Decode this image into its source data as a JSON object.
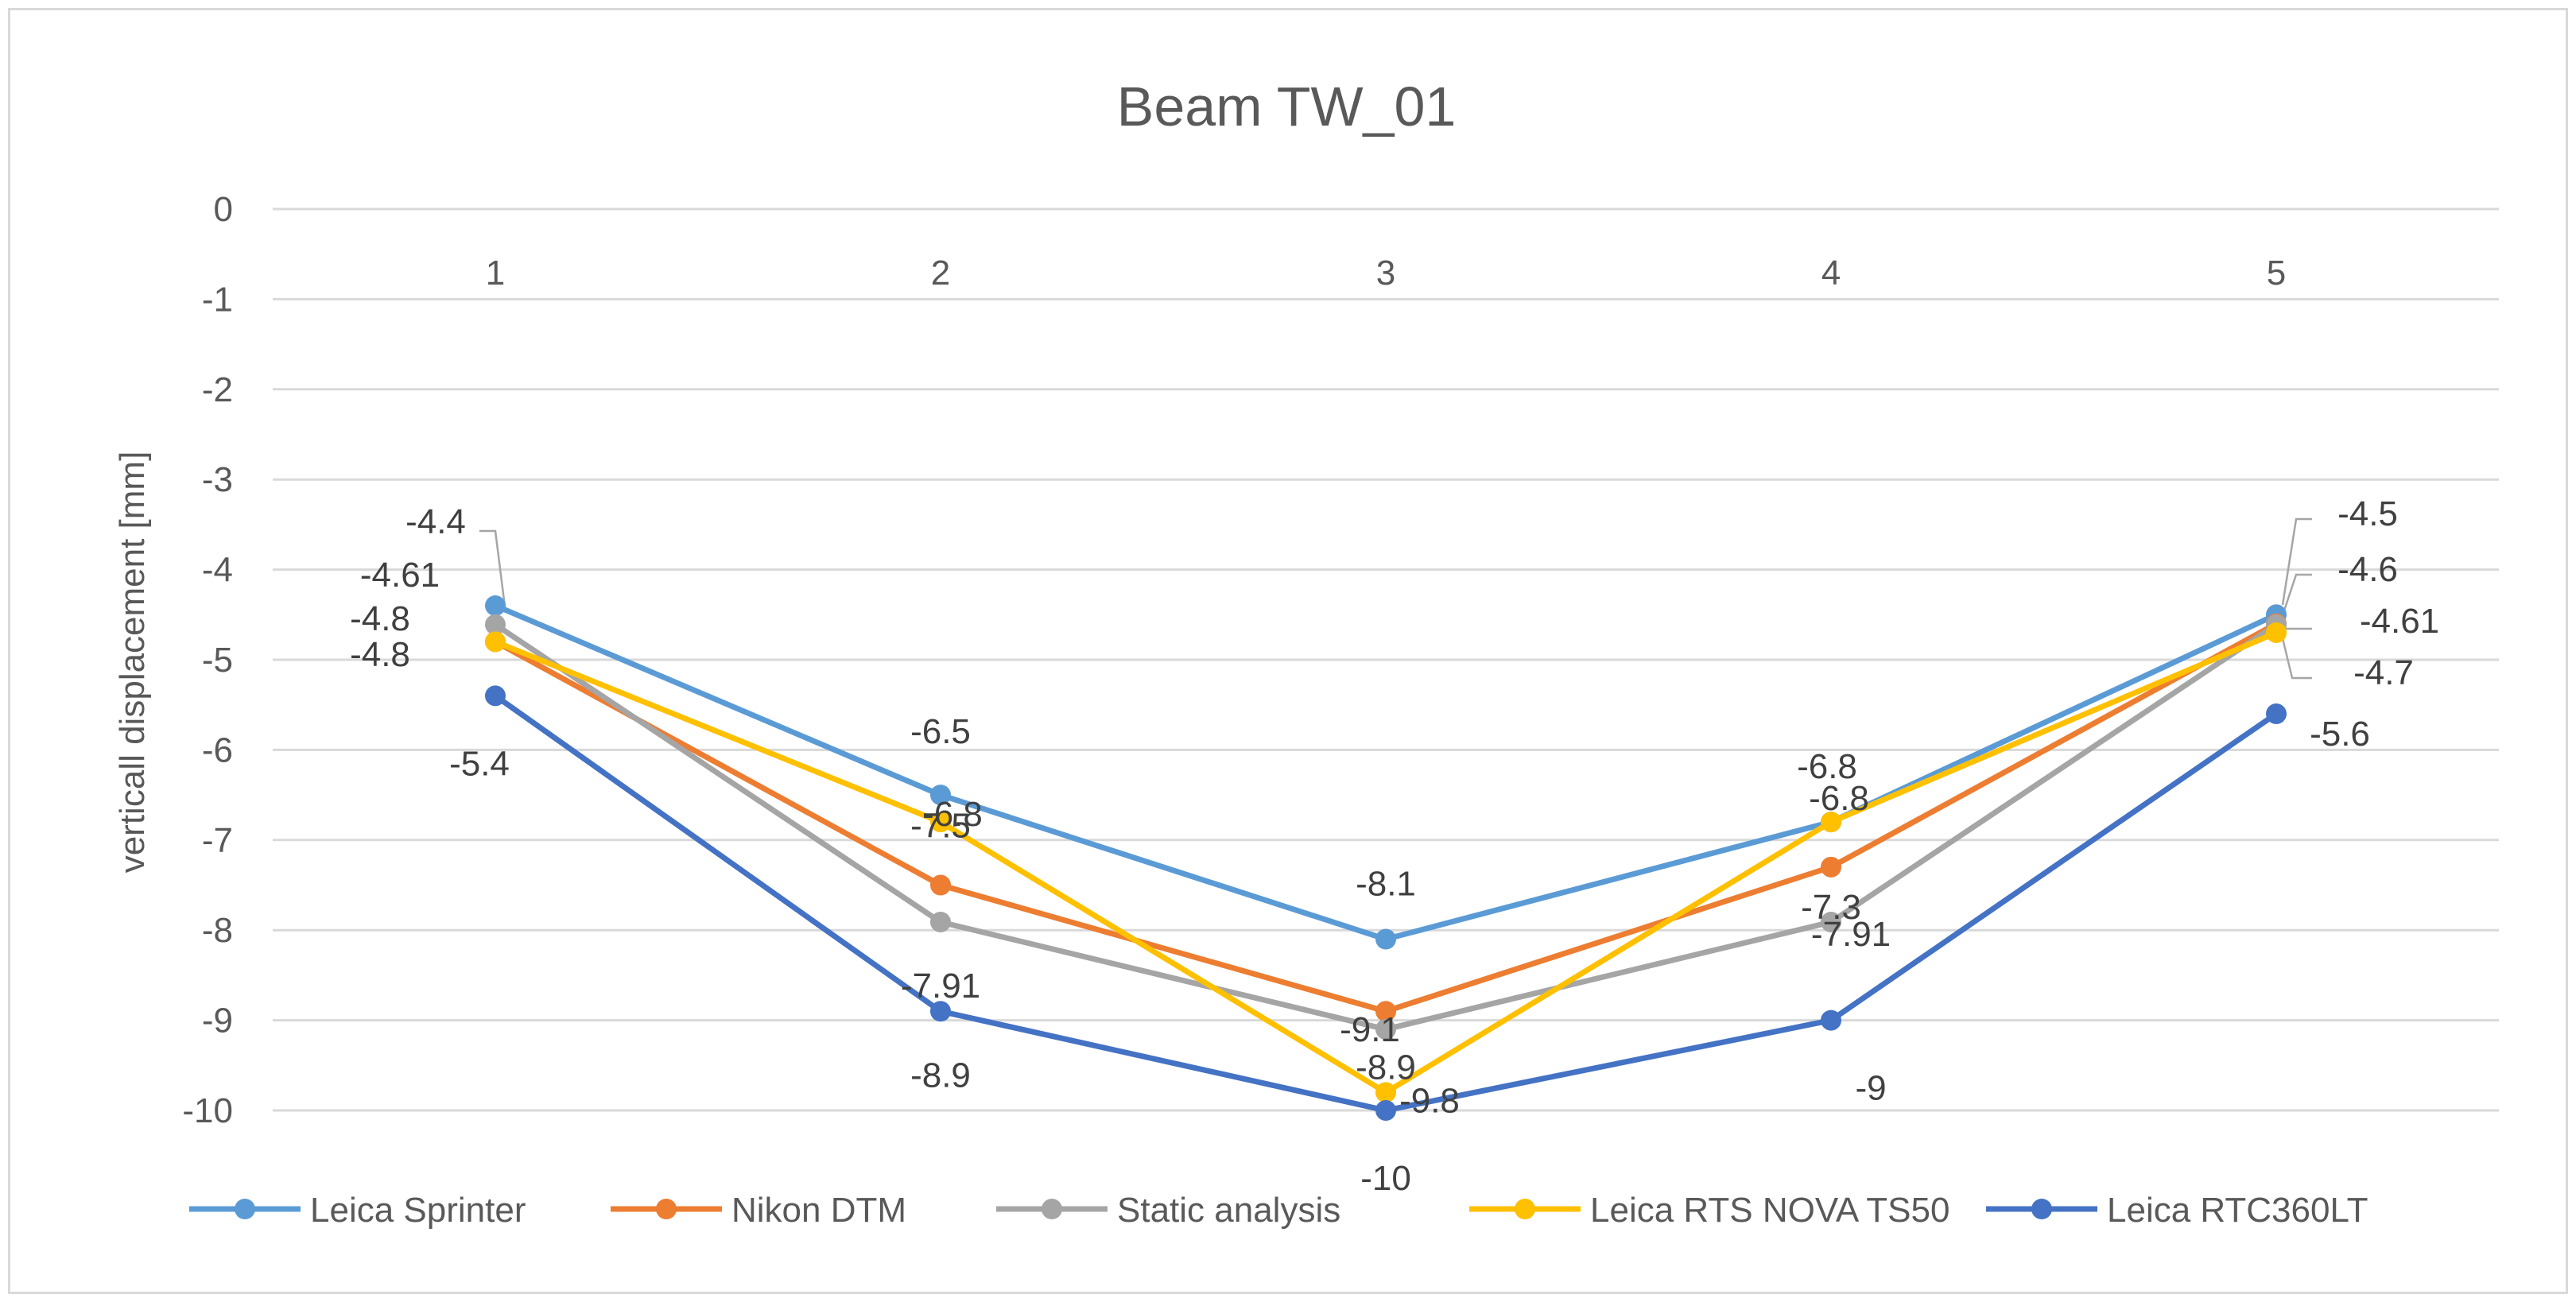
{
  "chart_data": {
    "type": "line",
    "title": "Beam TW_01",
    "xlabel": "",
    "ylabel": "verticall displacement [mm]",
    "categories": [
      "1",
      "2",
      "3",
      "4",
      "5"
    ],
    "ylim": [
      -10,
      0
    ],
    "yticks": [
      0,
      -1,
      -2,
      -3,
      -4,
      -5,
      -6,
      -7,
      -8,
      -9,
      -10
    ],
    "ytick_labels": [
      "0",
      "-1",
      "-2",
      "-3",
      "-4",
      "-5",
      "-6",
      "-7",
      "-8",
      "-9",
      "-10"
    ],
    "grid": true,
    "legend_position": "bottom",
    "series": [
      {
        "name": "Leica Sprinter",
        "color": "#5b9bd5",
        "values": [
          -4.4,
          -6.5,
          -8.1,
          -6.8,
          -4.5
        ],
        "labels": [
          "-4.4",
          "-6.5",
          "-8.1",
          "-6.8",
          "-4.5"
        ]
      },
      {
        "name": "Nikon DTM",
        "color": "#ed7d31",
        "values": [
          -4.8,
          -7.5,
          -8.9,
          -7.3,
          -4.6
        ],
        "labels": [
          "-4.8",
          "-7.5",
          "-8.9",
          "-7.3",
          "-4.6"
        ]
      },
      {
        "name": "Static analysis",
        "color": "#a5a5a5",
        "values": [
          -4.61,
          -7.91,
          -9.1,
          -7.91,
          -4.61
        ],
        "labels": [
          "-4.61",
          "-7.91",
          "-9.1",
          "-7.91",
          "-4.61"
        ]
      },
      {
        "name": "Leica RTS NOVA TS50",
        "color": "#ffc000",
        "values": [
          -4.8,
          -6.8,
          -9.8,
          -6.8,
          -4.7
        ],
        "labels": [
          "-4.8",
          "-6.8",
          "-9.8",
          "-6.8",
          "-4.7"
        ]
      },
      {
        "name": "Leica RTC360LT",
        "color": "#4472c4",
        "values": [
          -5.4,
          -8.9,
          -10,
          -9,
          -5.6
        ],
        "labels": [
          "-5.4",
          "-8.9",
          "-10",
          "-9",
          "-5.6"
        ]
      }
    ]
  }
}
